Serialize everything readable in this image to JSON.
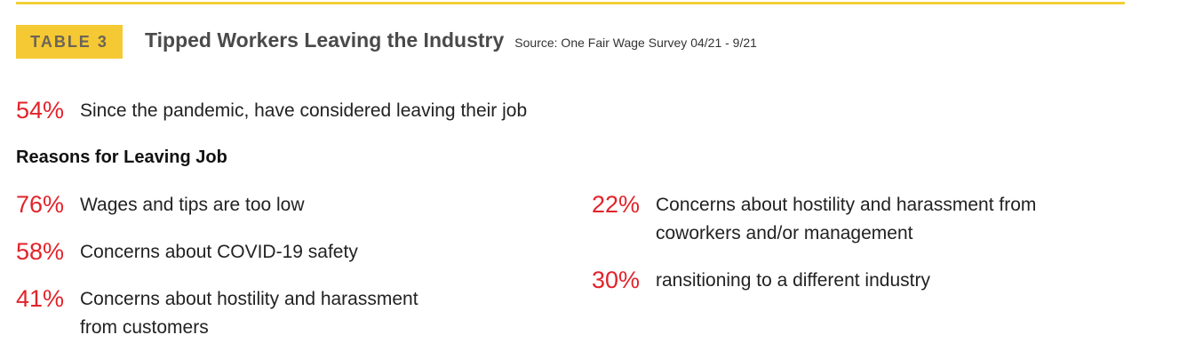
{
  "header": {
    "badge": "TABLE 3",
    "title": "Tipped Workers Leaving the Industry",
    "source": "Source: One Fair Wage Survey 04/21 - 9/21"
  },
  "headline": {
    "percent": "54%",
    "text": "Since the pandemic, have considered leaving their job"
  },
  "reasons": {
    "heading": "Reasons for Leaving Job",
    "left": [
      {
        "percent": "76%",
        "text": "Wages and tips are too low"
      },
      {
        "percent": "58%",
        "text": "Concerns about COVID-19 safety"
      },
      {
        "percent": "41%",
        "text": "Concerns about hostility and harassment",
        "text2": "from customers"
      }
    ],
    "right": [
      {
        "percent": "22%",
        "text": "Concerns about hostility and harassment from",
        "text2": "coworkers and/or management"
      },
      {
        "percent": "30%",
        "text": "ransitioning to a different industry"
      }
    ]
  },
  "colors": {
    "accent_yellow": "#f5c933",
    "percent_red": "#e2232a"
  }
}
